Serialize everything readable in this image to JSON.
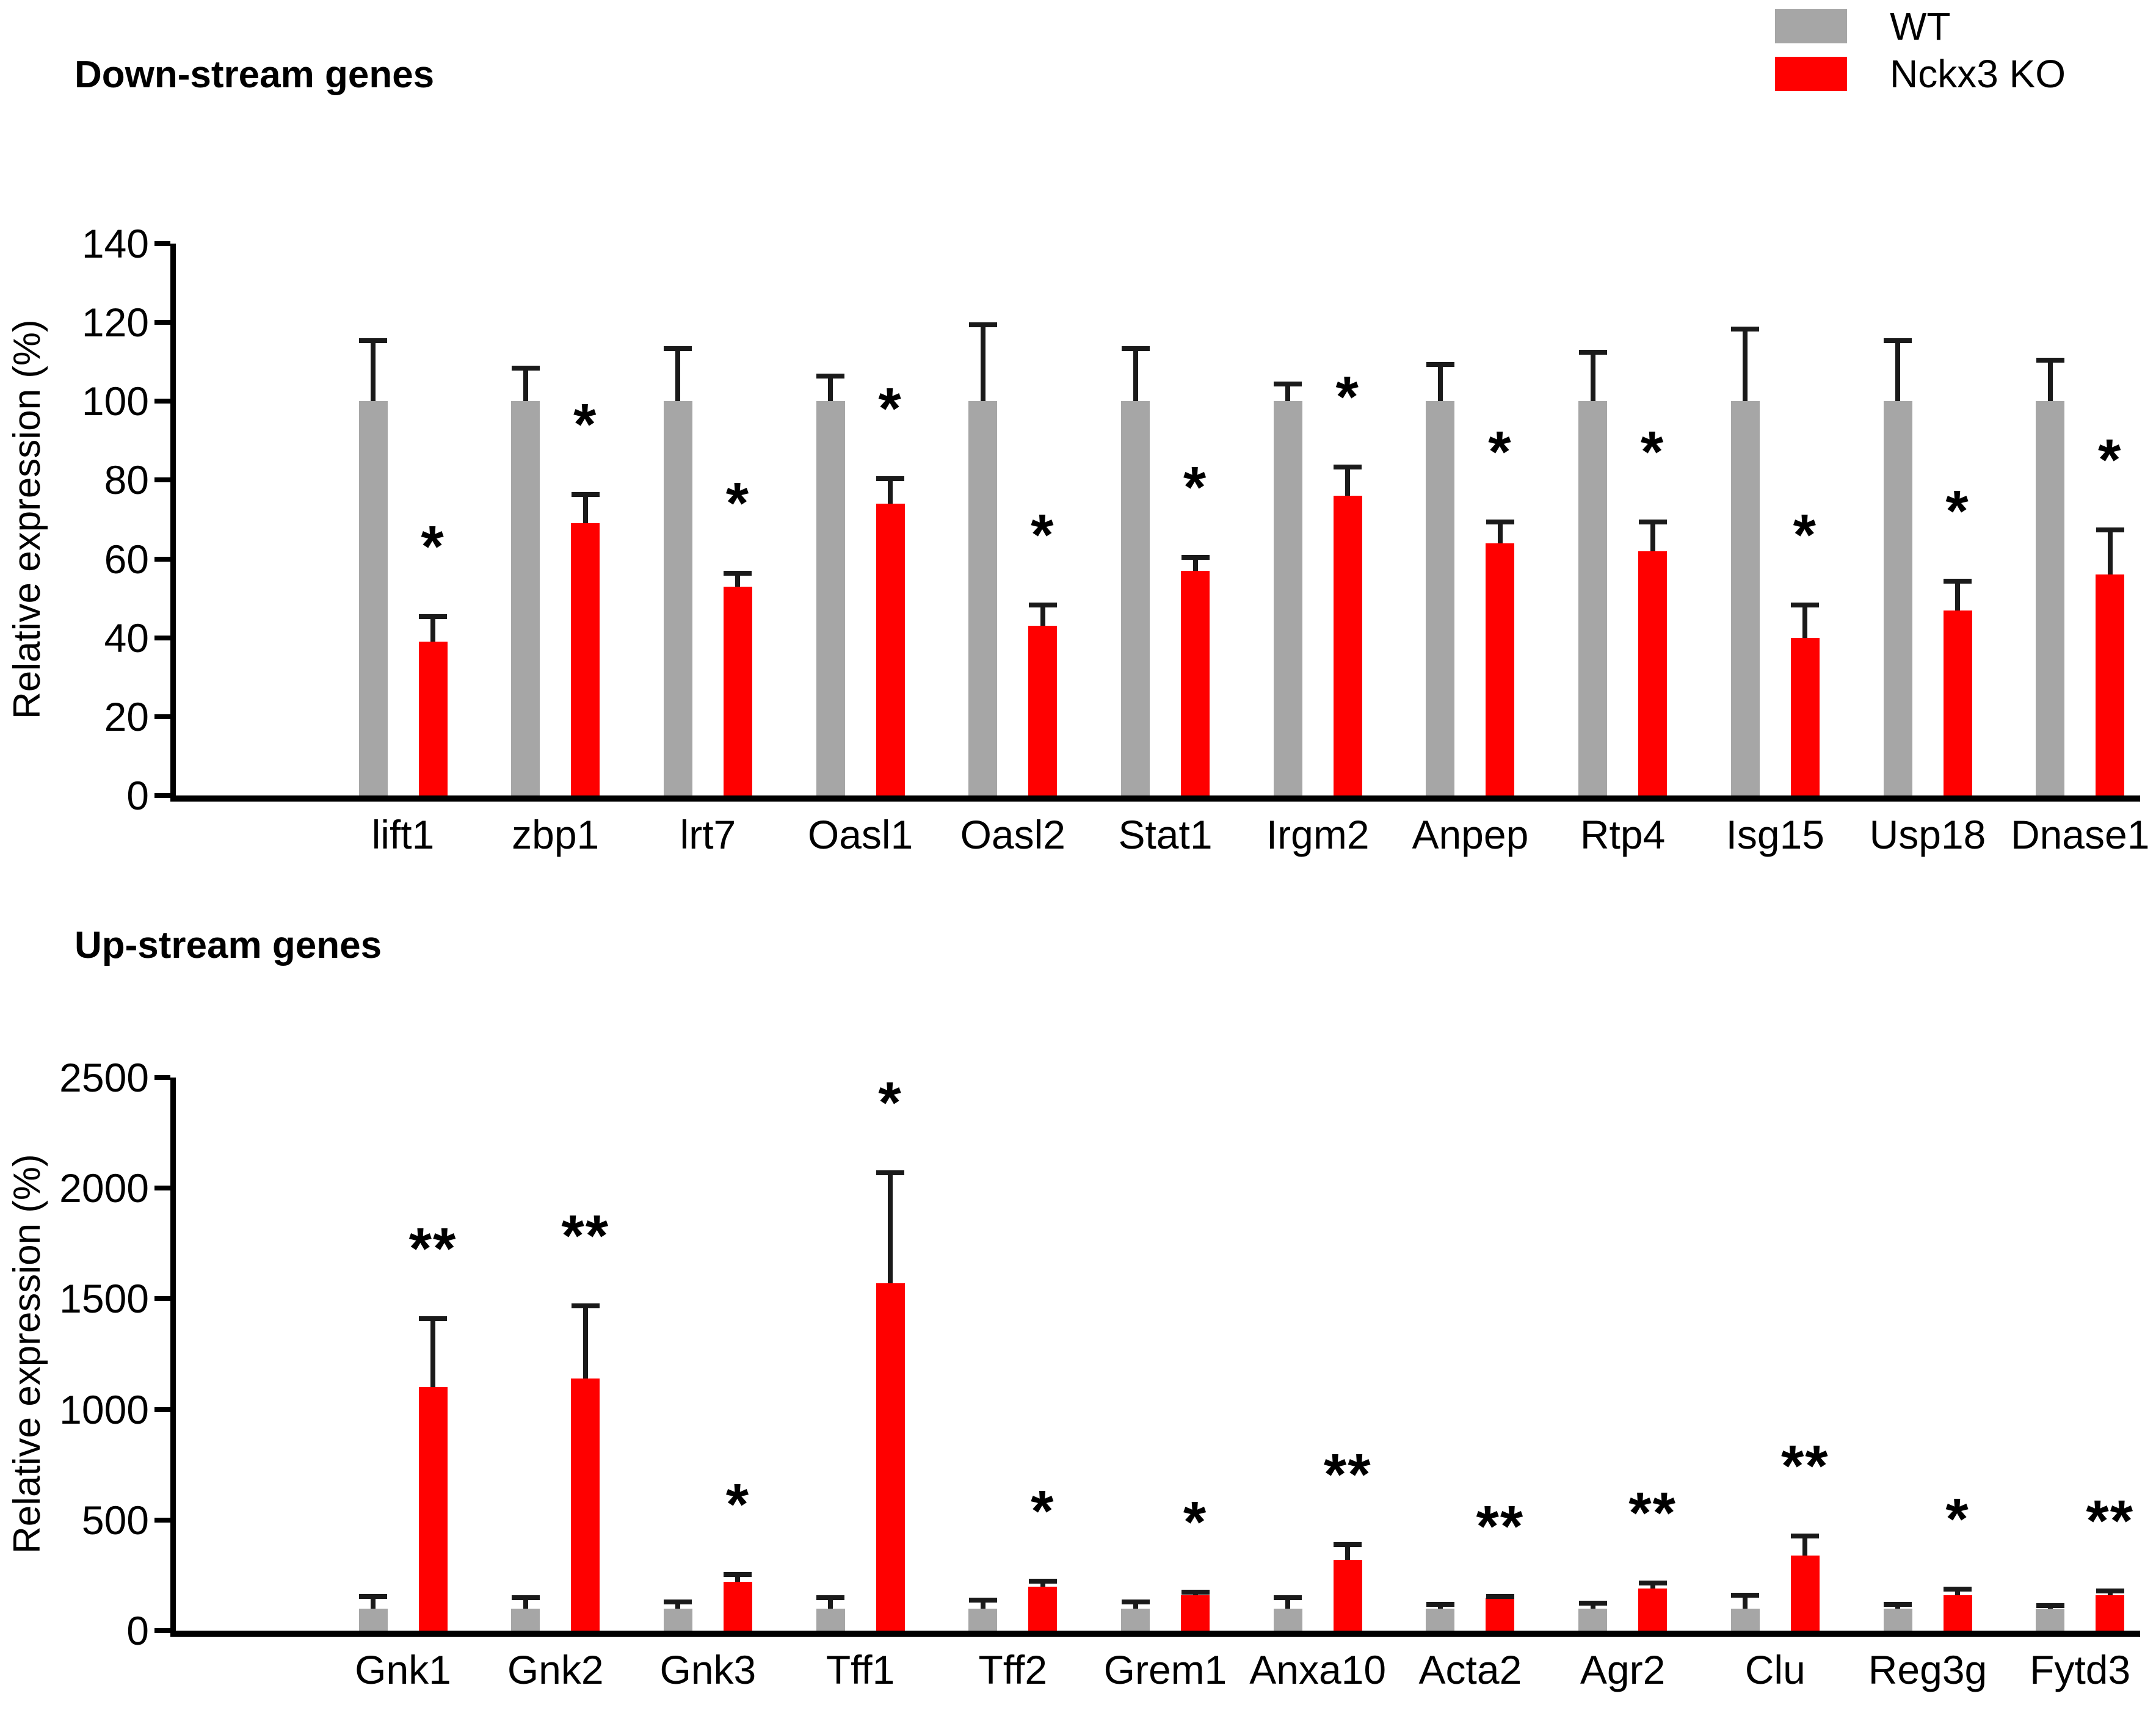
{
  "figure": {
    "background": "#ffffff"
  },
  "legend": {
    "items": [
      {
        "label": "WT",
        "color": "#a6a6a6"
      },
      {
        "label": "Nckx3 KO",
        "color": "#ff0000"
      }
    ]
  },
  "chart_data": [
    {
      "type": "bar",
      "title": "Down-stream genes",
      "xlabel": "",
      "ylabel": "Relative expression (%)",
      "ylim": [
        0,
        140
      ],
      "yticks": [
        0,
        20,
        40,
        60,
        80,
        100,
        120,
        140
      ],
      "grid": false,
      "legend_position": "top-right",
      "categories": [
        "lift1",
        "zbp1",
        "lrt7",
        "Oasl1",
        "Oasl2",
        "Stat1",
        "Irgm2",
        "Anpep",
        "Rtp4",
        "Isg15",
        "Usp18",
        "Dnase1"
      ],
      "series": [
        {
          "name": "WT",
          "color": "#a6a6a6",
          "values": [
            100,
            100,
            100,
            100,
            100,
            100,
            100,
            100,
            100,
            100,
            100,
            100
          ],
          "errors": [
            16,
            9,
            14,
            7,
            20,
            14,
            5,
            10,
            13,
            19,
            16,
            11
          ]
        },
        {
          "name": "Nckx3 KO",
          "color": "#ff0000",
          "values": [
            39,
            69,
            53,
            74,
            43,
            57,
            76,
            64,
            62,
            40,
            47,
            56
          ],
          "errors": [
            7,
            8,
            4,
            7,
            6,
            4,
            8,
            6,
            8,
            9,
            8,
            12
          ]
        }
      ],
      "significance": [
        "*",
        "*",
        "*",
        "*",
        "*",
        "*",
        "*",
        "*",
        "*",
        "*",
        "*",
        "*"
      ]
    },
    {
      "type": "bar",
      "title": "Up-stream genes",
      "xlabel": "",
      "ylabel": "Relative expression (%)",
      "ylim": [
        0,
        2500
      ],
      "yticks": [
        0,
        500,
        1000,
        1500,
        2000,
        2500
      ],
      "grid": false,
      "legend_position": "none",
      "categories": [
        "Gnk1",
        "Gnk2",
        "Gnk3",
        "Tff1",
        "Tff2",
        "Grem1",
        "Anxa10",
        "Acta2",
        "Agr2",
        "Clu",
        "Reg3g",
        "Fytd3"
      ],
      "series": [
        {
          "name": "WT",
          "color": "#a6a6a6",
          "values": [
            100,
            100,
            100,
            100,
            100,
            100,
            100,
            100,
            100,
            100,
            100,
            100
          ],
          "errors": [
            65,
            60,
            40,
            60,
            50,
            40,
            60,
            30,
            35,
            70,
            30,
            25
          ]
        },
        {
          "name": "Nckx3 KO",
          "color": "#ff0000",
          "values": [
            1100,
            1140,
            220,
            1570,
            200,
            160,
            320,
            150,
            190,
            340,
            160,
            160
          ],
          "errors": [
            320,
            340,
            45,
            510,
            35,
            25,
            80,
            15,
            35,
            100,
            40,
            30
          ]
        }
      ],
      "significance": [
        "**",
        "**",
        "*",
        "*",
        "*",
        "*",
        "**",
        "**",
        "**",
        "**",
        "*",
        "**"
      ]
    }
  ]
}
